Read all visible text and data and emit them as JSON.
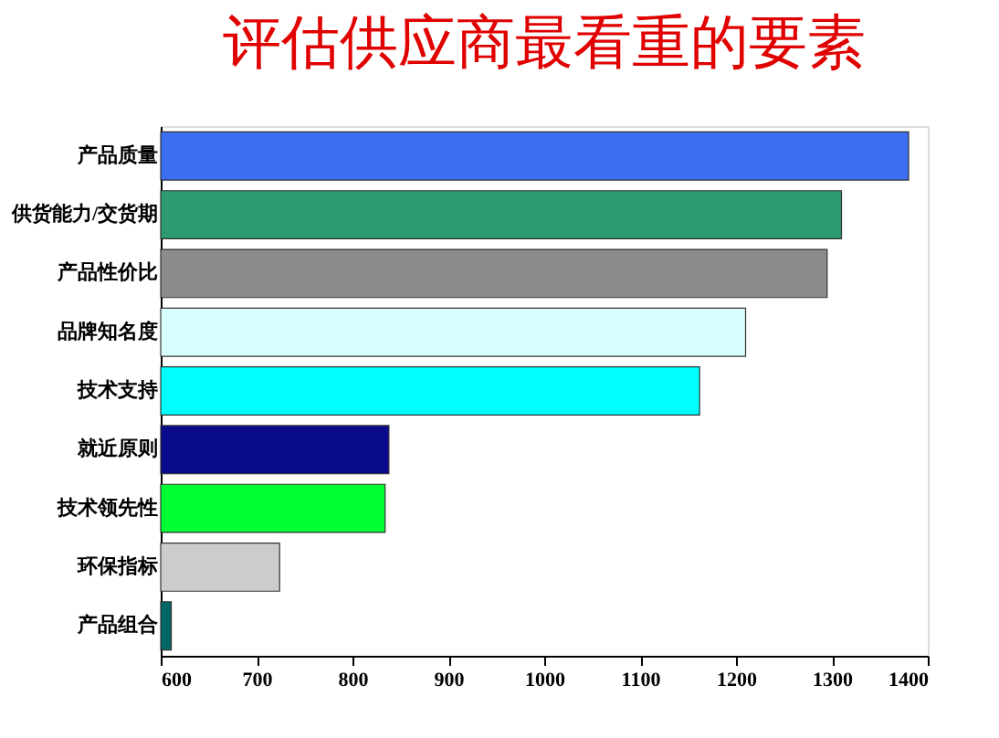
{
  "chart_data": {
    "type": "bar",
    "orientation": "horizontal",
    "title": "评估供应商最看重的要素",
    "categories": [
      "产品质量",
      "供货能力/交货期",
      "产品性价比",
      "品牌知名度",
      "技术支持",
      "就近原则",
      "技术领先性",
      "环保指标",
      "产品组合"
    ],
    "values": [
      1380,
      1310,
      1295,
      1210,
      1162,
      838,
      834,
      724,
      611
    ],
    "colors": [
      "#3c6ef0",
      "#2e9a70",
      "#8c8c8c",
      "#d8ffff",
      "#00ffff",
      "#0a0a8c",
      "#00ff33",
      "#cccccc",
      "#006666"
    ],
    "xlim": [
      600,
      1400
    ],
    "xticks": [
      600,
      700,
      800,
      900,
      1000,
      1100,
      1200,
      1300,
      1400
    ],
    "grid": false
  }
}
